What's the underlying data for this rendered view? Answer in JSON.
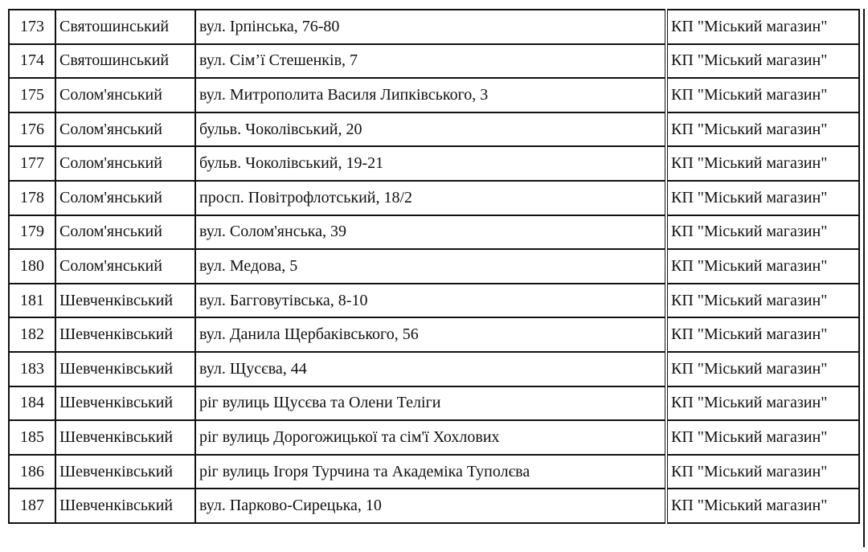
{
  "table": {
    "rows": [
      [
        173,
        "Святошинський",
        "вул. Ірпінська, 76-80",
        "КП \"Міський магазин\""
      ],
      [
        174,
        "Святошинський",
        "вул. Сім’ї Стешенків, 7",
        "КП \"Міський магазин\""
      ],
      [
        175,
        "Солом'янський",
        "вул. Митрополита Василя Липківського, 3",
        "КП \"Міський магазин\""
      ],
      [
        176,
        "Солом'янський",
        "бульв. Чоколівський, 20",
        "КП \"Міський магазин\""
      ],
      [
        177,
        "Солом'янський",
        "бульв. Чоколівський, 19-21",
        "КП \"Міський магазин\""
      ],
      [
        178,
        "Солом'янський",
        "просп. Повітрофлотський, 18/2",
        "КП \"Міський магазин\""
      ],
      [
        179,
        "Солом'янський",
        "вул. Солом'янська, 39",
        "КП \"Міський магазин\""
      ],
      [
        180,
        "Солом'янський",
        "вул. Медова, 5",
        "КП \"Міський магазин\""
      ],
      [
        181,
        "Шевченківський",
        "вул. Багговутівська, 8-10",
        "КП \"Міський магазин\""
      ],
      [
        182,
        "Шевченківський",
        "вул. Данила Щербаківського, 56",
        "КП \"Міський магазин\""
      ],
      [
        183,
        "Шевченківський",
        "вул. Щусєва, 44",
        "КП \"Міський магазин\""
      ],
      [
        184,
        "Шевченківський",
        "ріг вулиць Щусєва та Олени Теліги",
        "КП \"Міський магазин\""
      ],
      [
        185,
        "Шевченківський",
        "ріг вулиць Дорогожицької та сім'ї Хохлових",
        "КП \"Міський магазин\""
      ],
      [
        186,
        "Шевченківський",
        "ріг вулиць Ігоря Турчина та Академіка Туполєва",
        "КП \"Міський магазин\""
      ],
      [
        187,
        "Шевченківський",
        "вул. Парково-Сирецька, 10",
        "КП \"Міський магазин\""
      ]
    ]
  }
}
